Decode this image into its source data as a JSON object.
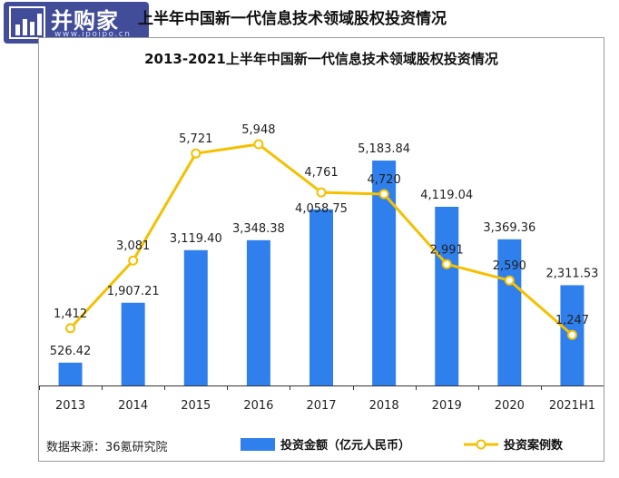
{
  "page": {
    "title": "上半年中国新一代信息技术领域股权投资情况"
  },
  "watermark": {
    "brand": "并购家",
    "url": "www.ipoipo.cn"
  },
  "chart_data": {
    "type": "bar",
    "title": "2013-2021上半年中国新一代信息技术领域股权投资情况",
    "categories": [
      "2013",
      "2014",
      "2015",
      "2016",
      "2017",
      "2018",
      "2019",
      "2020",
      "2021H1"
    ],
    "series": [
      {
        "name": "投资金额（亿元人民币）",
        "type": "bar",
        "values": [
          526.42,
          1907.21,
          3119.4,
          3348.38,
          4058.75,
          5183.84,
          4119.04,
          3369.36,
          2311.53
        ],
        "labels": [
          "526.42",
          "1,907.21",
          "3,119.40",
          "3,348.38",
          "4,058.75",
          "5,183.84",
          "4,119.04",
          "3,369.36",
          "2,311.53"
        ],
        "color": "#2f80ed"
      },
      {
        "name": "投资案例数",
        "type": "line",
        "values": [
          1412,
          3081,
          5721,
          5948,
          4761,
          4720,
          2991,
          2590,
          1247
        ],
        "labels": [
          "1,412",
          "3,081",
          "5,721",
          "5,948",
          "4,761",
          "4,720",
          "2,991",
          "2,590",
          "1,247"
        ],
        "color": "#f5c000"
      }
    ],
    "bar_ylim": [
      0,
      6000
    ],
    "line_ylim": [
      0,
      7000
    ],
    "grid": false,
    "legend_position": "bottom-right",
    "source": "数据来源：36氪研究院"
  }
}
